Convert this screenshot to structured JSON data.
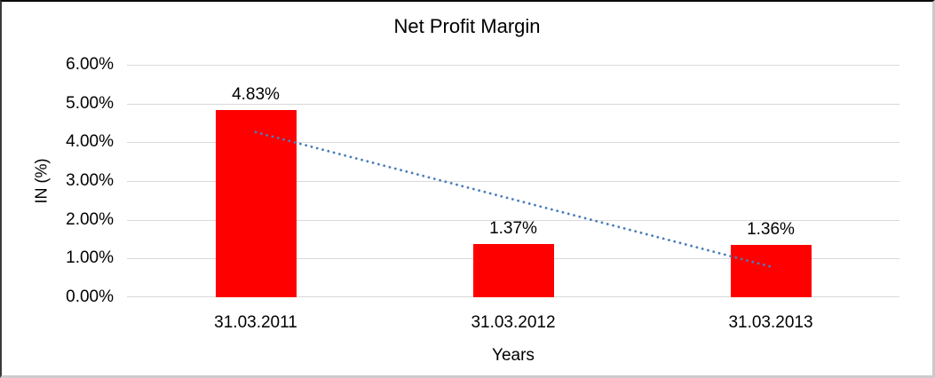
{
  "chart_data": {
    "type": "bar",
    "title": "Net Profit Margin",
    "xlabel": "Years",
    "ylabel": "IN (%)",
    "categories": [
      "31.03.2011",
      "31.03.2012",
      "31.03.2013"
    ],
    "series": [
      {
        "name": "Net Profit Margin",
        "values": [
          4.83,
          1.37,
          1.36
        ]
      }
    ],
    "data_labels": [
      "4.83%",
      "1.37%",
      "1.36%"
    ],
    "y_ticks": [
      {
        "value": 6,
        "label": "6.00%"
      },
      {
        "value": 5,
        "label": "5.00%"
      },
      {
        "value": 4,
        "label": "4.00%"
      },
      {
        "value": 3,
        "label": "3.00%"
      },
      {
        "value": 2,
        "label": "2.00%"
      },
      {
        "value": 1,
        "label": "1.00%"
      },
      {
        "value": 0,
        "label": "0.00%"
      }
    ],
    "ylim": [
      0,
      6
    ],
    "grid": true,
    "legend_position": "none",
    "trendline": {
      "type": "linear",
      "style": "dotted",
      "start_value": 4.26,
      "end_value": 0.79
    },
    "colors": {
      "bar": "#ff0000",
      "gridline": "#d9d9d9",
      "text": "#000000",
      "trendline": "#4a7ebb",
      "background": "#ffffff"
    }
  }
}
